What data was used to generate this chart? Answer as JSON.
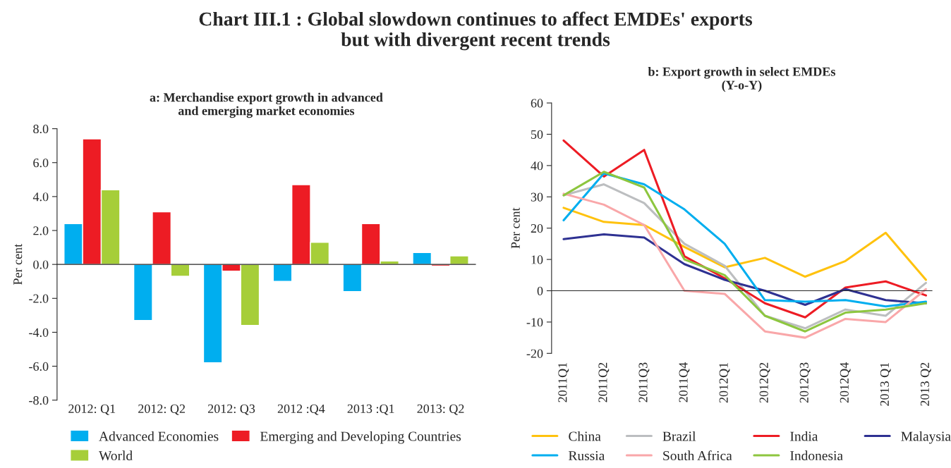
{
  "chart_data": [
    {
      "type": "bar",
      "title": "Chart III.1 : Global slowdown continues to affect EMDEs' exports\nbut with divergent recent trends",
      "subtitle": "a: Merchandise export growth in advanced\nand emerging market economies",
      "ylabel": "Per cent",
      "categories": [
        "2012: Q1",
        "2012: Q2",
        "2012: Q3",
        "2012 :Q4",
        "2013 :Q1",
        "2013: Q2"
      ],
      "series": [
        {
          "name": "Advanced Economies",
          "color": "#00aeef",
          "values": [
            2.4,
            -3.3,
            -5.8,
            -1.0,
            -1.6,
            0.7
          ]
        },
        {
          "name": "Emerging and Developing Countries",
          "color": "#ed1c24",
          "values": [
            7.4,
            3.1,
            -0.4,
            4.7,
            2.4,
            -0.1
          ]
        },
        {
          "name": "World",
          "color": "#a6ce39",
          "values": [
            4.4,
            -0.7,
            -3.6,
            1.3,
            0.2,
            0.5
          ]
        }
      ],
      "ylim": [
        -8,
        8
      ],
      "yticks": [
        {
          "value": -8,
          "label": "-8.0"
        },
        {
          "value": -6,
          "label": "-6.0"
        },
        {
          "value": -4,
          "label": "-4.0"
        },
        {
          "value": -2,
          "label": "-2.0"
        },
        {
          "value": 0,
          "label": "0.0"
        },
        {
          "value": 2,
          "label": "2.0"
        },
        {
          "value": 4,
          "label": "4.0"
        },
        {
          "value": 6,
          "label": "6.0"
        },
        {
          "value": 8,
          "label": "8.0"
        }
      ],
      "legend": "bottom"
    },
    {
      "type": "line",
      "subtitle": "b: Export growth in select EMDEs\n(Y-o-Y)",
      "ylabel": "Per cent",
      "categories": [
        "2011Q1",
        "2011Q2",
        "2011Q3",
        "2011Q4",
        "2012Q1",
        "2012Q2",
        "2012Q3",
        "2012Q4",
        "2013 Q1",
        "2013 Q2"
      ],
      "series": [
        {
          "name": "China",
          "color": "#ffc20e",
          "values": [
            26.5,
            22,
            21,
            14,
            7.5,
            10.5,
            4.5,
            9.5,
            18.5,
            3.5
          ]
        },
        {
          "name": "Brazil",
          "color": "#bcbec0",
          "values": [
            30.5,
            34,
            28,
            15,
            8,
            -8,
            -12,
            -6,
            -8,
            2.5
          ]
        },
        {
          "name": "India",
          "color": "#ed1c24",
          "values": [
            48,
            36.5,
            45,
            11,
            4,
            -4,
            -8.5,
            1,
            3,
            -1.5
          ]
        },
        {
          "name": "Malaysia",
          "color": "#2e3192",
          "values": [
            16.5,
            18,
            17,
            8.5,
            3.5,
            0,
            -4.5,
            0.5,
            -3,
            -4
          ]
        },
        {
          "name": "Russia",
          "color": "#00aeef",
          "values": [
            22.5,
            37.5,
            34,
            26,
            15,
            -3,
            -3.5,
            -3,
            -5,
            -3.5
          ]
        },
        {
          "name": "South Africa",
          "color": "#f9a7a9",
          "values": [
            31,
            27.5,
            21,
            0,
            -1,
            -13,
            -15,
            -9,
            -10,
            0.5
          ]
        },
        {
          "name": "Indonesia",
          "color": "#8dc63f",
          "values": [
            30.5,
            38,
            33,
            10,
            5,
            -8,
            -13,
            -7,
            -6,
            -4
          ]
        }
      ],
      "ylim": [
        -20,
        60
      ],
      "yticks": [
        -20,
        -10,
        0,
        10,
        20,
        30,
        40,
        50,
        60
      ],
      "legend": "bottom",
      "marker": "none",
      "line_style": "solid"
    }
  ]
}
